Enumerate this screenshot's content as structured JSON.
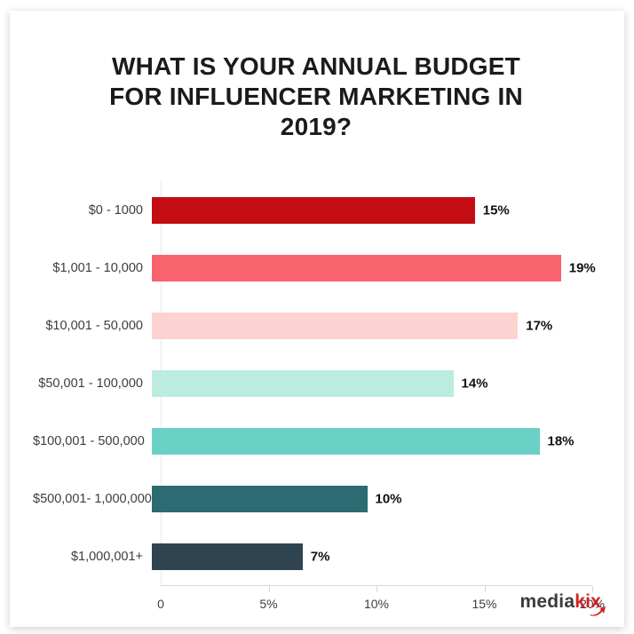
{
  "chart_data": {
    "type": "bar",
    "orientation": "horizontal",
    "title": "WHAT IS YOUR ANNUAL BUDGET FOR INFLUENCER MARKETING IN 2019?",
    "categories": [
      "$0 - 1000",
      "$1,001 - 10,000",
      "$10,001 - 50,000",
      "$50,001 - 100,000",
      "$100,001 - 500,000",
      "$500,001- 1,000,000",
      "$1,000,001+"
    ],
    "values": [
      15,
      19,
      17,
      14,
      18,
      10,
      7
    ],
    "value_labels": [
      "15%",
      "19%",
      "17%",
      "14%",
      "18%",
      "10%",
      "7%"
    ],
    "bar_colors": [
      "#c30d13",
      "#f9636e",
      "#fdd3d1",
      "#bbecdf",
      "#6bd1c7",
      "#2b6b71",
      "#2f4450"
    ],
    "xlabel": "",
    "ylabel": "",
    "xlim": [
      0,
      20
    ],
    "x_ticks": [
      "0",
      "5%",
      "10%",
      "15%",
      "20%"
    ],
    "x_tick_values": [
      0,
      5,
      10,
      15,
      20
    ],
    "grid": false,
    "legend": "none"
  },
  "logo": {
    "part1": "media",
    "part2": "kix",
    "part1_color": "#3b3b3b",
    "part2_color": "#d42127"
  }
}
